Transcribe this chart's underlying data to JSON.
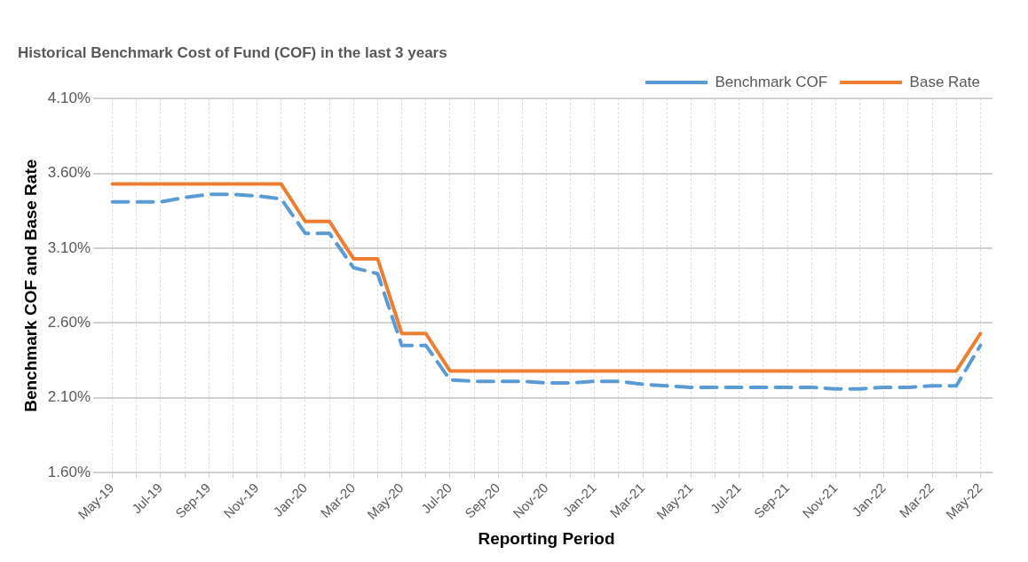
{
  "chart_data": {
    "type": "line",
    "title": "Historical Benchmark Cost of Fund (COF) in the last 3 years",
    "xlabel": "Reporting Period",
    "ylabel": "Benchmark COF and Base Rate",
    "categories": [
      "May-19",
      null,
      "Jul-19",
      null,
      "Sep-19",
      null,
      "Nov-19",
      null,
      "Jan-20",
      null,
      "Mar-20",
      null,
      "May-20",
      null,
      "Jul-20",
      null,
      "Sep-20",
      null,
      "Nov-20",
      null,
      "Jan-21",
      null,
      "Mar-21",
      null,
      "May-21",
      null,
      "Jul-21",
      null,
      "Sep-21",
      null,
      "Nov-21",
      null,
      "Jan-22",
      null,
      "Mar-22",
      null,
      "May-22"
    ],
    "series": [
      {
        "name": "Benchmark COF",
        "color": "#5b9bd5",
        "line_style": "dashed",
        "values": [
          3.41,
          3.41,
          3.41,
          3.44,
          3.46,
          3.46,
          3.45,
          3.43,
          3.2,
          3.2,
          2.97,
          2.93,
          2.45,
          2.45,
          2.22,
          2.21,
          2.21,
          2.21,
          2.2,
          2.2,
          2.21,
          2.21,
          2.19,
          2.18,
          2.17,
          2.17,
          2.17,
          2.17,
          2.17,
          2.17,
          2.16,
          2.16,
          2.17,
          2.17,
          2.18,
          2.18,
          2.45
        ]
      },
      {
        "name": "Base Rate",
        "color": "#ed7d31",
        "line_style": "solid",
        "values": [
          3.53,
          3.53,
          3.53,
          3.53,
          3.53,
          3.53,
          3.53,
          3.53,
          3.28,
          3.28,
          3.03,
          3.03,
          2.53,
          2.53,
          2.28,
          2.28,
          2.28,
          2.28,
          2.28,
          2.28,
          2.28,
          2.28,
          2.28,
          2.28,
          2.28,
          2.28,
          2.28,
          2.28,
          2.28,
          2.28,
          2.28,
          2.28,
          2.28,
          2.28,
          2.28,
          2.28,
          2.53
        ]
      }
    ],
    "ylim": [
      1.6,
      4.1
    ],
    "yticks": [
      {
        "value": 1.6,
        "label": "1.60%"
      },
      {
        "value": 2.1,
        "label": "2.10%"
      },
      {
        "value": 2.6,
        "label": "2.60%"
      },
      {
        "value": 3.1,
        "label": "3.10%"
      },
      {
        "value": 3.6,
        "label": "3.60%"
      },
      {
        "value": 4.1,
        "label": "4.10%"
      }
    ],
    "grid": true,
    "legend": "top right",
    "marker": "none"
  }
}
